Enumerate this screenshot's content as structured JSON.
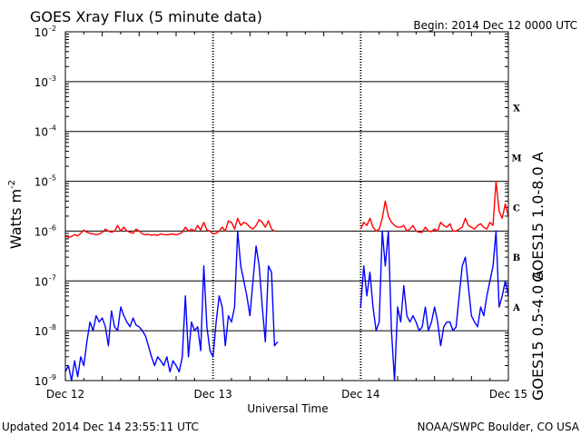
{
  "chart_data": {
    "type": "line",
    "title": "GOES Xray Flux (5 minute data)",
    "begin_label": "Begin:  2014 Dec 12 0000 UTC",
    "ylabel_base": "Watts m",
    "ylabel_exp": "-2",
    "xlabel": "Universal Time",
    "y_scale": "log",
    "ylim": [
      1e-09,
      0.01
    ],
    "y_ticks": [
      {
        "base": "10",
        "exp": "-9"
      },
      {
        "base": "10",
        "exp": "-8"
      },
      {
        "base": "10",
        "exp": "-7"
      },
      {
        "base": "10",
        "exp": "-6"
      },
      {
        "base": "10",
        "exp": "-5"
      },
      {
        "base": "10",
        "exp": "-4"
      },
      {
        "base": "10",
        "exp": "-3"
      },
      {
        "base": "10",
        "exp": "-2"
      }
    ],
    "x_unit": "hours since 2014 Dec 12 0000 UTC",
    "xlim": [
      0,
      72
    ],
    "x_ticks": [
      {
        "label": "Dec 12",
        "x": 0
      },
      {
        "label": "Dec 13",
        "x": 24
      },
      {
        "label": "Dec 14",
        "x": 48
      },
      {
        "label": "Dec 15",
        "x": 72
      }
    ],
    "flare_classes": [
      {
        "label": "X",
        "y": 0.0003
      },
      {
        "label": "M",
        "y": 3e-05
      },
      {
        "label": "C",
        "y": 3e-06
      },
      {
        "label": "B",
        "y": 3e-07
      },
      {
        "label": "A",
        "y": 3e-08
      }
    ],
    "grid": true,
    "series": [
      {
        "name": "GOES15 1.0-8.0 A",
        "color": "#ff0000",
        "segments": [
          [
            [
              0.0,
              8e-07
            ],
            [
              0.5,
              7.5e-07
            ],
            [
              1.0,
              7.8e-07
            ],
            [
              1.5,
              8.5e-07
            ],
            [
              2.0,
              8e-07
            ],
            [
              2.5,
              9e-07
            ],
            [
              3.0,
              1.05e-06
            ],
            [
              3.5,
              9.5e-07
            ],
            [
              4.0,
              9e-07
            ],
            [
              4.5,
              8.8e-07
            ],
            [
              5.0,
              8.5e-07
            ],
            [
              5.5,
              8.7e-07
            ],
            [
              6.0,
              9.5e-07
            ],
            [
              6.5,
              1.1e-06
            ],
            [
              7.0,
              1e-06
            ],
            [
              7.5,
              9.5e-07
            ],
            [
              8.0,
              1e-06
            ],
            [
              8.5,
              1.3e-06
            ],
            [
              9.0,
              1e-06
            ],
            [
              9.5,
              1.2e-06
            ],
            [
              10.0,
              1e-06
            ],
            [
              10.5,
              9.5e-07
            ],
            [
              11.0,
              9e-07
            ],
            [
              11.5,
              1.1e-06
            ],
            [
              12.0,
              1e-06
            ],
            [
              12.5,
              8.8e-07
            ],
            [
              13.0,
              8.5e-07
            ],
            [
              13.5,
              8.6e-07
            ],
            [
              14.0,
              8.3e-07
            ],
            [
              14.5,
              8.5e-07
            ],
            [
              15.0,
              8.2e-07
            ],
            [
              15.5,
              8.8e-07
            ],
            [
              16.0,
              8.5e-07
            ],
            [
              16.5,
              8.4e-07
            ],
            [
              17.0,
              8.6e-07
            ],
            [
              17.5,
              8.7e-07
            ],
            [
              18.0,
              8.4e-07
            ],
            [
              18.5,
              8.8e-07
            ],
            [
              19.0,
              9.5e-07
            ],
            [
              19.5,
              1.2e-06
            ],
            [
              20.0,
              1e-06
            ],
            [
              20.5,
              1.1e-06
            ],
            [
              21.0,
              1e-06
            ],
            [
              21.5,
              1.3e-06
            ],
            [
              22.0,
              1.05e-06
            ],
            [
              22.5,
              1.5e-06
            ],
            [
              23.0,
              1.05e-06
            ],
            [
              23.5,
              1e-06
            ],
            [
              24.0,
              8.8e-07
            ],
            [
              24.5,
              9e-07
            ],
            [
              25.0,
              1e-06
            ],
            [
              25.5,
              1.2e-06
            ],
            [
              26.0,
              1e-06
            ],
            [
              26.5,
              1.6e-06
            ],
            [
              27.0,
              1.5e-06
            ],
            [
              27.5,
              1.1e-06
            ],
            [
              28.0,
              1.8e-06
            ],
            [
              28.5,
              1.3e-06
            ],
            [
              29.0,
              1.5e-06
            ],
            [
              29.5,
              1.4e-06
            ],
            [
              30.0,
              1.2e-06
            ],
            [
              30.5,
              1.1e-06
            ],
            [
              31.0,
              1.3e-06
            ],
            [
              31.5,
              1.7e-06
            ],
            [
              32.0,
              1.5e-06
            ],
            [
              32.5,
              1.2e-06
            ],
            [
              33.0,
              1.6e-06
            ],
            [
              33.5,
              1.1e-06
            ],
            [
              34.0,
              1e-06
            ]
          ],
          [
            [
              48.0,
              1.1e-06
            ],
            [
              48.5,
              1.5e-06
            ],
            [
              49.0,
              1.3e-06
            ],
            [
              49.5,
              1.8e-06
            ],
            [
              50.0,
              1.2e-06
            ],
            [
              50.5,
              1e-06
            ],
            [
              51.0,
              1.1e-06
            ],
            [
              51.5,
              1.8e-06
            ],
            [
              52.0,
              4e-06
            ],
            [
              52.5,
              2e-06
            ],
            [
              53.0,
              1.5e-06
            ],
            [
              53.5,
              1.3e-06
            ],
            [
              54.0,
              1.2e-06
            ],
            [
              54.5,
              1.2e-06
            ],
            [
              55.0,
              1.3e-06
            ],
            [
              55.5,
              1e-06
            ],
            [
              56.0,
              1.1e-06
            ],
            [
              56.5,
              1.3e-06
            ],
            [
              57.0,
              1e-06
            ],
            [
              57.5,
              9.5e-07
            ],
            [
              58.0,
              9.5e-07
            ],
            [
              58.5,
              1.2e-06
            ],
            [
              59.0,
              1e-06
            ],
            [
              59.5,
              9.8e-07
            ],
            [
              60.0,
              1.1e-06
            ],
            [
              60.5,
              1e-06
            ],
            [
              61.0,
              1.5e-06
            ],
            [
              61.5,
              1.3e-06
            ],
            [
              62.0,
              1.2e-06
            ],
            [
              62.5,
              1.4e-06
            ],
            [
              63.0,
              1e-06
            ],
            [
              63.5,
              1e-06
            ],
            [
              64.0,
              1.1e-06
            ],
            [
              64.5,
              1.2e-06
            ],
            [
              65.0,
              1.8e-06
            ],
            [
              65.5,
              1.3e-06
            ],
            [
              66.0,
              1.2e-06
            ],
            [
              66.5,
              1.1e-06
            ],
            [
              67.0,
              1.3e-06
            ],
            [
              67.5,
              1.4e-06
            ],
            [
              68.0,
              1.2e-06
            ],
            [
              68.5,
              1.1e-06
            ],
            [
              69.0,
              1.5e-06
            ],
            [
              69.5,
              1.3e-06
            ],
            [
              70.0,
              1e-05
            ],
            [
              70.5,
              2.5e-06
            ],
            [
              71.0,
              1.8e-06
            ],
            [
              71.5,
              3.5e-06
            ],
            [
              72.0,
              2e-06
            ]
          ]
        ]
      },
      {
        "name": "GOES15 0.5-4.0 A",
        "color": "#0000ff",
        "segments": [
          [
            [
              0.0,
              1.5e-09
            ],
            [
              0.5,
              2e-09
            ],
            [
              1.0,
              1e-09
            ],
            [
              1.5,
              2.5e-09
            ],
            [
              2.0,
              1.2e-09
            ],
            [
              2.5,
              3e-09
            ],
            [
              3.0,
              2e-09
            ],
            [
              3.5,
              6e-09
            ],
            [
              4.0,
              1.5e-08
            ],
            [
              4.5,
              1e-08
            ],
            [
              5.0,
              2e-08
            ],
            [
              5.5,
              1.5e-08
            ],
            [
              6.0,
              1.8e-08
            ],
            [
              6.5,
              1.2e-08
            ],
            [
              7.0,
              5e-09
            ],
            [
              7.5,
              2.5e-08
            ],
            [
              8.0,
              1.2e-08
            ],
            [
              8.5,
              1e-08
            ],
            [
              9.0,
              3e-08
            ],
            [
              9.5,
              2e-08
            ],
            [
              10.0,
              1.5e-08
            ],
            [
              10.5,
              1.2e-08
            ],
            [
              11.0,
              1.8e-08
            ],
            [
              11.5,
              1.3e-08
            ],
            [
              12.0,
              1.2e-08
            ],
            [
              12.5,
              1e-08
            ],
            [
              13.0,
              8e-09
            ],
            [
              13.5,
              5e-09
            ],
            [
              14.0,
              3e-09
            ],
            [
              14.5,
              2e-09
            ],
            [
              15.0,
              3e-09
            ],
            [
              15.5,
              2.5e-09
            ],
            [
              16.0,
              2e-09
            ],
            [
              16.5,
              3e-09
            ],
            [
              17.0,
              1.5e-09
            ],
            [
              17.5,
              2.5e-09
            ],
            [
              18.0,
              2e-09
            ],
            [
              18.5,
              1.5e-09
            ],
            [
              19.0,
              3e-09
            ],
            [
              19.5,
              5e-08
            ],
            [
              20.0,
              3e-09
            ],
            [
              20.5,
              1.5e-08
            ],
            [
              21.0,
              1e-08
            ],
            [
              21.5,
              1.2e-08
            ],
            [
              22.0,
              4e-09
            ],
            [
              22.5,
              2e-07
            ],
            [
              23.0,
              1.2e-08
            ],
            [
              23.5,
              4e-09
            ],
            [
              24.0,
              3e-09
            ],
            [
              24.5,
              1.5e-08
            ],
            [
              25.0,
              5e-08
            ],
            [
              25.5,
              3e-08
            ],
            [
              26.0,
              5e-09
            ],
            [
              26.5,
              2e-08
            ],
            [
              27.0,
              1.5e-08
            ],
            [
              27.5,
              3e-08
            ],
            [
              28.0,
              1e-06
            ],
            [
              28.5,
              2e-07
            ],
            [
              29.0,
              1e-07
            ],
            [
              29.5,
              5e-08
            ],
            [
              30.0,
              2e-08
            ],
            [
              30.5,
              1e-07
            ],
            [
              31.0,
              5e-07
            ],
            [
              31.5,
              2e-07
            ],
            [
              32.0,
              3e-08
            ],
            [
              32.5,
              6e-09
            ],
            [
              33.0,
              2e-07
            ],
            [
              33.5,
              1.5e-07
            ],
            [
              34.0,
              5e-09
            ],
            [
              34.5,
              6e-09
            ]
          ],
          [
            [
              48.0,
              3e-08
            ],
            [
              48.5,
              2e-07
            ],
            [
              49.0,
              5e-08
            ],
            [
              49.5,
              1.5e-07
            ],
            [
              50.0,
              3e-08
            ],
            [
              50.5,
              1e-08
            ],
            [
              51.0,
              1.5e-08
            ],
            [
              51.5,
              1e-06
            ],
            [
              52.0,
              2e-07
            ],
            [
              52.5,
              1e-06
            ],
            [
              53.0,
              1e-08
            ],
            [
              53.5,
              1e-09
            ],
            [
              54.0,
              3e-08
            ],
            [
              54.5,
              1.5e-08
            ],
            [
              55.0,
              8e-08
            ],
            [
              55.5,
              2e-08
            ],
            [
              56.0,
              1.5e-08
            ],
            [
              56.5,
              2e-08
            ],
            [
              57.0,
              1.5e-08
            ],
            [
              57.5,
              1e-08
            ],
            [
              58.0,
              1.2e-08
            ],
            [
              58.5,
              3e-08
            ],
            [
              59.0,
              1e-08
            ],
            [
              59.5,
              1.5e-08
            ],
            [
              60.0,
              3e-08
            ],
            [
              60.5,
              1.5e-08
            ],
            [
              61.0,
              5e-09
            ],
            [
              61.5,
              1.2e-08
            ],
            [
              62.0,
              1.5e-08
            ],
            [
              62.5,
              1.5e-08
            ],
            [
              63.0,
              1e-08
            ],
            [
              63.5,
              1.2e-08
            ],
            [
              64.0,
              5e-08
            ],
            [
              64.5,
              2e-07
            ],
            [
              65.0,
              3e-07
            ],
            [
              65.5,
              8e-08
            ],
            [
              66.0,
              2e-08
            ],
            [
              66.5,
              1.5e-08
            ],
            [
              67.0,
              1.2e-08
            ],
            [
              67.5,
              3e-08
            ],
            [
              68.0,
              2e-08
            ],
            [
              68.5,
              5e-08
            ],
            [
              69.0,
              1e-07
            ],
            [
              69.5,
              2e-07
            ],
            [
              70.0,
              1e-06
            ],
            [
              70.5,
              3e-08
            ],
            [
              71.0,
              5e-08
            ],
            [
              71.5,
              1e-07
            ],
            [
              72.0,
              5e-08
            ]
          ]
        ]
      }
    ]
  },
  "footer": {
    "updated": "Updated 2014 Dec 14 23:55:11 UTC",
    "credit": "NOAA/SWPC Boulder, CO USA"
  }
}
